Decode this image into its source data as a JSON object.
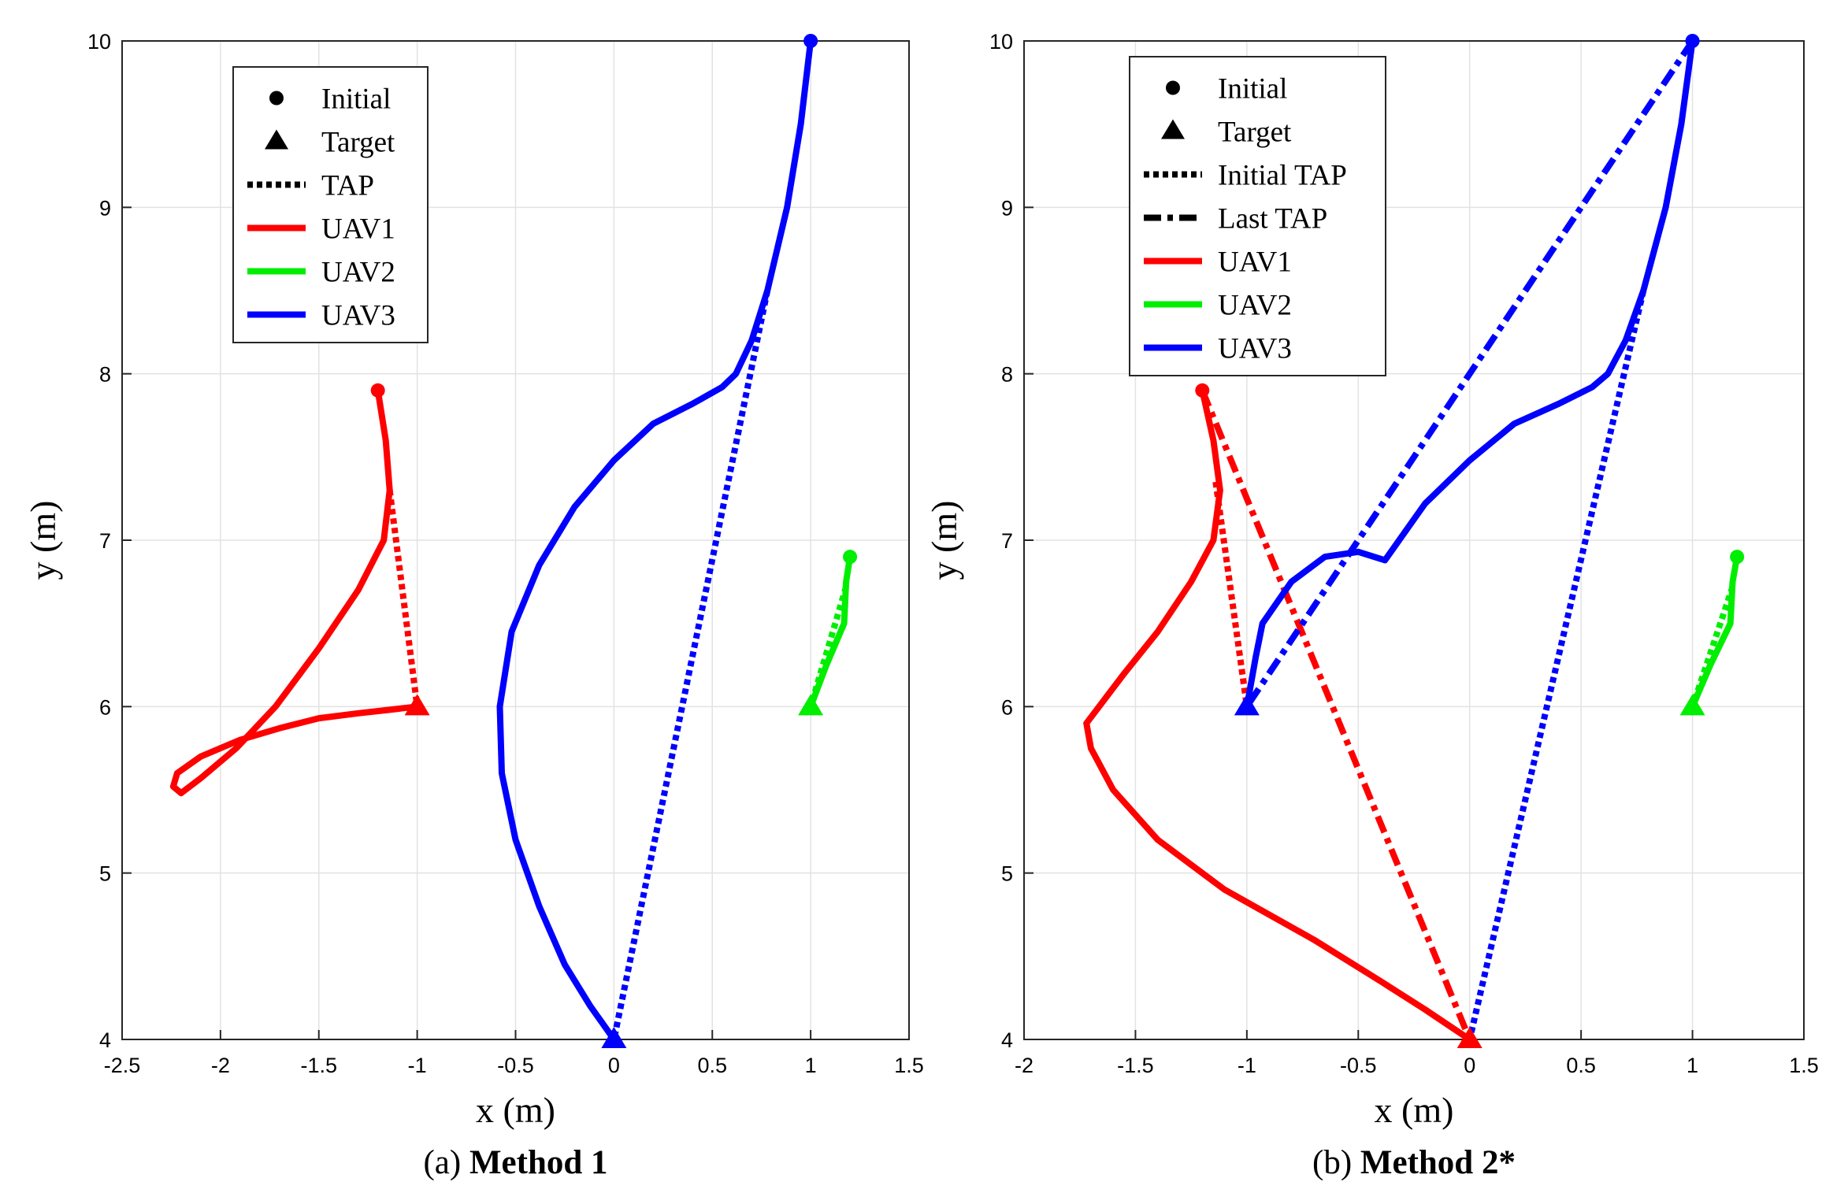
{
  "chart_data": [
    {
      "type": "line",
      "panel": "a",
      "caption_prefix": "(a) ",
      "caption_bold": "Method 1",
      "xlabel": "x (m)",
      "ylabel": "y (m)",
      "xlim": [
        -2.5,
        1.5
      ],
      "ylim": [
        4,
        10
      ],
      "xticks": [
        -2.5,
        -2,
        -1.5,
        -1,
        -0.5,
        0,
        0.5,
        1,
        1.5
      ],
      "xtick_labels": [
        "-2.5",
        "-2",
        "-1.5",
        "-1",
        "-0.5",
        "0",
        "0.5",
        "1",
        "1.5"
      ],
      "yticks": [
        4,
        5,
        6,
        7,
        8,
        9,
        10
      ],
      "ytick_labels": [
        "4",
        "5",
        "6",
        "7",
        "8",
        "9",
        "10"
      ],
      "grid": true,
      "legend": {
        "placement": "top-left",
        "entries": [
          {
            "label": "Initial",
            "marker": "circle"
          },
          {
            "label": "Target",
            "marker": "triangle"
          },
          {
            "label": "TAP",
            "style": "dotted",
            "color": "#000000"
          },
          {
            "label": "UAV1",
            "style": "solid",
            "color": "#ff0000"
          },
          {
            "label": "UAV2",
            "style": "solid",
            "color": "#00ee00"
          },
          {
            "label": "UAV3",
            "style": "solid",
            "color": "#0000ff"
          }
        ]
      },
      "series": [
        {
          "name": "UAV1",
          "color": "#ff0000",
          "initial": [
            -1.2,
            7.9
          ],
          "target": [
            -1,
            6
          ],
          "trajectory": [
            [
              -1.2,
              7.9
            ],
            [
              -1.16,
              7.6
            ],
            [
              -1.14,
              7.3
            ],
            [
              -1.17,
              7.0
            ],
            [
              -1.3,
              6.7
            ],
            [
              -1.5,
              6.35
            ],
            [
              -1.72,
              6.0
            ],
            [
              -1.92,
              5.75
            ],
            [
              -2.1,
              5.57
            ],
            [
              -2.2,
              5.48
            ],
            [
              -2.24,
              5.52
            ],
            [
              -2.22,
              5.6
            ],
            [
              -2.1,
              5.7
            ],
            [
              -1.9,
              5.8
            ],
            [
              -1.7,
              5.87
            ],
            [
              -1.5,
              5.93
            ],
            [
              -1.3,
              5.96
            ],
            [
              -1.15,
              5.98
            ],
            [
              -1.0,
              6.0
            ]
          ],
          "taps": [
            {
              "style": "dotted",
              "points": [
                [
                  -1.14,
                  7.3
                ],
                [
                  -1,
                  6
                ]
              ]
            }
          ]
        },
        {
          "name": "UAV2",
          "color": "#00ee00",
          "initial": [
            1.2,
            6.9
          ],
          "target": [
            1,
            6
          ],
          "trajectory": [
            [
              1.2,
              6.9
            ],
            [
              1.18,
              6.75
            ],
            [
              1.17,
              6.5
            ],
            [
              1.08,
              6.25
            ],
            [
              1.0,
              6.0
            ]
          ],
          "taps": [
            {
              "style": "dotted",
              "points": [
                [
                  1.18,
                  6.72
                ],
                [
                  1,
                  6
                ]
              ]
            }
          ]
        },
        {
          "name": "UAV3",
          "color": "#0000ff",
          "initial": [
            1,
            10
          ],
          "target": [
            0,
            4
          ],
          "trajectory": [
            [
              1,
              10
            ],
            [
              0.95,
              9.5
            ],
            [
              0.88,
              9.0
            ],
            [
              0.78,
              8.5
            ],
            [
              0.7,
              8.2
            ],
            [
              0.62,
              8.0
            ],
            [
              0.55,
              7.92
            ],
            [
              0.4,
              7.82
            ],
            [
              0.2,
              7.7
            ],
            [
              0.0,
              7.48
            ],
            [
              -0.2,
              7.2
            ],
            [
              -0.38,
              6.85
            ],
            [
              -0.52,
              6.45
            ],
            [
              -0.58,
              6.0
            ],
            [
              -0.57,
              5.6
            ],
            [
              -0.5,
              5.2
            ],
            [
              -0.38,
              4.8
            ],
            [
              -0.25,
              4.45
            ],
            [
              -0.12,
              4.2
            ],
            [
              0.0,
              4.0
            ]
          ],
          "taps": [
            {
              "style": "dotted",
              "points": [
                [
                  0.78,
                  8.5
                ],
                [
                  0,
                  4
                ]
              ]
            }
          ]
        }
      ]
    },
    {
      "type": "line",
      "panel": "b",
      "caption_prefix": "(b) ",
      "caption_bold": "Method 2*",
      "xlabel": "x (m)",
      "ylabel": "y (m)",
      "xlim": [
        -2,
        1.5
      ],
      "ylim": [
        4,
        10
      ],
      "xticks": [
        -2,
        -1.5,
        -1,
        -0.5,
        0,
        0.5,
        1,
        1.5
      ],
      "xtick_labels": [
        "-2",
        "-1.5",
        "-1",
        "-0.5",
        "0",
        "0.5",
        "1",
        "1.5"
      ],
      "yticks": [
        4,
        5,
        6,
        7,
        8,
        9,
        10
      ],
      "ytick_labels": [
        "4",
        "5",
        "6",
        "7",
        "8",
        "9",
        "10"
      ],
      "grid": true,
      "legend": {
        "placement": "top-left",
        "entries": [
          {
            "label": "Initial",
            "marker": "circle"
          },
          {
            "label": "Target",
            "marker": "triangle"
          },
          {
            "label": "Initial TAP",
            "style": "dotted",
            "color": "#000000"
          },
          {
            "label": "Last TAP",
            "style": "dashdot",
            "color": "#000000"
          },
          {
            "label": "UAV1",
            "style": "solid",
            "color": "#ff0000"
          },
          {
            "label": "UAV2",
            "style": "solid",
            "color": "#00ee00"
          },
          {
            "label": "UAV3",
            "style": "solid",
            "color": "#0000ff"
          }
        ]
      },
      "series": [
        {
          "name": "UAV1",
          "color": "#ff0000",
          "initial": [
            -1.2,
            7.9
          ],
          "target": [
            0,
            4
          ],
          "trajectory": [
            [
              -1.2,
              7.9
            ],
            [
              -1.15,
              7.6
            ],
            [
              -1.12,
              7.3
            ],
            [
              -1.15,
              7.0
            ],
            [
              -1.25,
              6.75
            ],
            [
              -1.4,
              6.45
            ],
            [
              -1.55,
              6.2
            ],
            [
              -1.72,
              5.9
            ],
            [
              -1.7,
              5.75
            ],
            [
              -1.6,
              5.5
            ],
            [
              -1.4,
              5.2
            ],
            [
              -1.1,
              4.9
            ],
            [
              -0.7,
              4.6
            ],
            [
              -0.4,
              4.35
            ],
            [
              -0.2,
              4.18
            ],
            [
              0.0,
              4.0
            ]
          ],
          "taps": [
            {
              "style": "dotted",
              "points": [
                [
                  -1.14,
                  7.35
                ],
                [
                  -1,
                  6
                ]
              ]
            },
            {
              "style": "dashdot",
              "points": [
                [
                  -1.2,
                  7.9
                ],
                [
                  0,
                  4
                ]
              ]
            }
          ]
        },
        {
          "name": "UAV2",
          "color": "#00ee00",
          "initial": [
            1.2,
            6.9
          ],
          "target": [
            1,
            6
          ],
          "trajectory": [
            [
              1.2,
              6.9
            ],
            [
              1.18,
              6.75
            ],
            [
              1.17,
              6.5
            ],
            [
              1.08,
              6.25
            ],
            [
              1.0,
              6.0
            ]
          ],
          "taps": [
            {
              "style": "dotted",
              "points": [
                [
                  1.18,
                  6.72
                ],
                [
                  1,
                  6
                ]
              ]
            }
          ]
        },
        {
          "name": "UAV3",
          "color": "#0000ff",
          "initial": [
            1,
            10
          ],
          "target": [
            -1,
            6
          ],
          "trajectory": [
            [
              1,
              10
            ],
            [
              0.95,
              9.5
            ],
            [
              0.88,
              9.0
            ],
            [
              0.78,
              8.5
            ],
            [
              0.7,
              8.2
            ],
            [
              0.62,
              8.0
            ],
            [
              0.55,
              7.92
            ],
            [
              0.4,
              7.82
            ],
            [
              0.2,
              7.7
            ],
            [
              0.0,
              7.48
            ],
            [
              -0.2,
              7.22
            ],
            [
              -0.38,
              6.88
            ],
            [
              -0.5,
              6.93
            ],
            [
              -0.65,
              6.9
            ],
            [
              -0.8,
              6.75
            ],
            [
              -0.93,
              6.5
            ],
            [
              -0.96,
              6.3
            ],
            [
              -1.0,
              6.0
            ]
          ],
          "taps": [
            {
              "style": "dotted",
              "points": [
                [
                  0.78,
                  8.5
                ],
                [
                  0,
                  4
                ]
              ]
            },
            {
              "style": "dashdot",
              "points": [
                [
                  1,
                  10
                ],
                [
                  -1,
                  6
                ]
              ]
            }
          ]
        }
      ]
    }
  ]
}
